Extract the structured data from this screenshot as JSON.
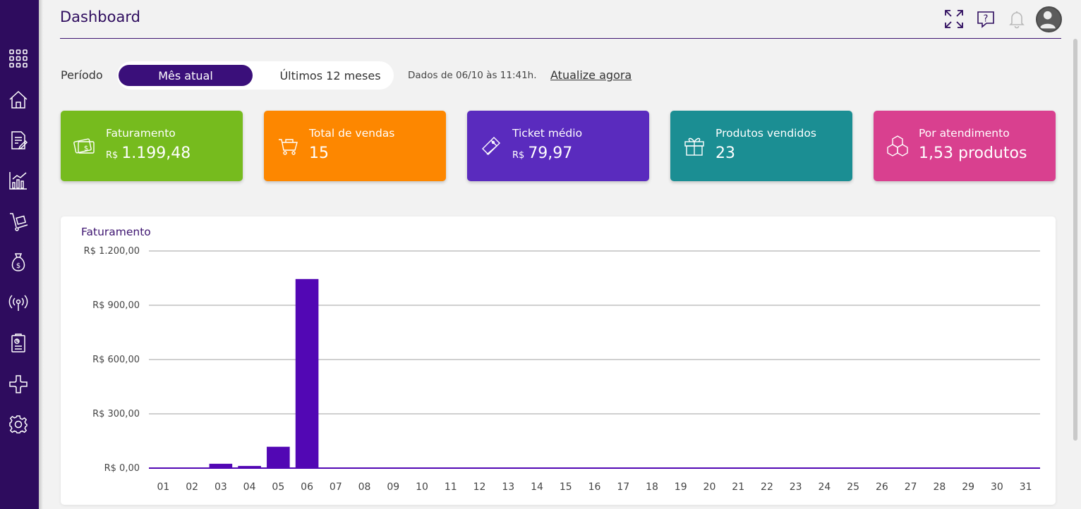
{
  "header": {
    "title": "Dashboard",
    "icons": [
      "fullscreen-icon",
      "help-icon",
      "bell-icon",
      "user-avatar-icon"
    ]
  },
  "sidebar": {
    "items": [
      "apps-grid-icon",
      "home-icon",
      "document-edit-icon",
      "bar-chart-icon",
      "hand-truck-icon",
      "money-bag-icon",
      "broadcast-icon",
      "report-icon",
      "puzzle-icon",
      "settings-icon"
    ],
    "background": "#2e0c5e"
  },
  "period": {
    "label": "Período",
    "options": [
      "Mês atual",
      "Últimos 12 meses"
    ],
    "selected": "Mês atual",
    "updated_text": "Dados de 06/10 às 11:41h.",
    "refresh_label": "Atualize agora"
  },
  "kpis": [
    {
      "label": "Faturamento",
      "currency": "R$",
      "value": "1.199,48",
      "color": "#76bb1e",
      "icon": "money-icon"
    },
    {
      "label": "Total de vendas",
      "currency": "",
      "value": "15",
      "color": "#fd8700",
      "icon": "cart-icon"
    },
    {
      "label": "Ticket médio",
      "currency": "R$",
      "value": "79,97",
      "color": "#5a2bbe",
      "icon": "ticket-icon"
    },
    {
      "label": "Produtos vendidos",
      "currency": "",
      "value": "23",
      "color": "#1b8e93",
      "icon": "gift-icon"
    },
    {
      "label": "Por atendimento",
      "currency": "",
      "value": "1,53 produtos",
      "color": "#d9408f",
      "icon": "boxes-icon"
    }
  ],
  "chart_data": {
    "type": "bar",
    "title": "Faturamento",
    "categories": [
      "01",
      "02",
      "03",
      "04",
      "05",
      "06",
      "07",
      "08",
      "09",
      "10",
      "11",
      "12",
      "13",
      "14",
      "15",
      "16",
      "17",
      "18",
      "19",
      "20",
      "21",
      "22",
      "23",
      "24",
      "25",
      "26",
      "27",
      "28",
      "29",
      "30",
      "31"
    ],
    "values": [
      0,
      0,
      24,
      12,
      118,
      1045,
      0,
      0,
      0,
      0,
      0,
      0,
      0,
      0,
      0,
      0,
      0,
      0,
      0,
      0,
      0,
      0,
      0,
      0,
      0,
      0,
      0,
      0,
      0,
      0,
      0
    ],
    "ylim": [
      0,
      1200
    ],
    "yticks": [
      {
        "value": 0,
        "label": "R$ 0,00"
      },
      {
        "value": 300,
        "label": "R$ 300,00"
      },
      {
        "value": 600,
        "label": "R$ 600,00"
      },
      {
        "value": 900,
        "label": "R$ 900,00"
      },
      {
        "value": 1200,
        "label": "R$ 1.200,00"
      }
    ],
    "grid": true,
    "bar_color": "#5207b4"
  }
}
